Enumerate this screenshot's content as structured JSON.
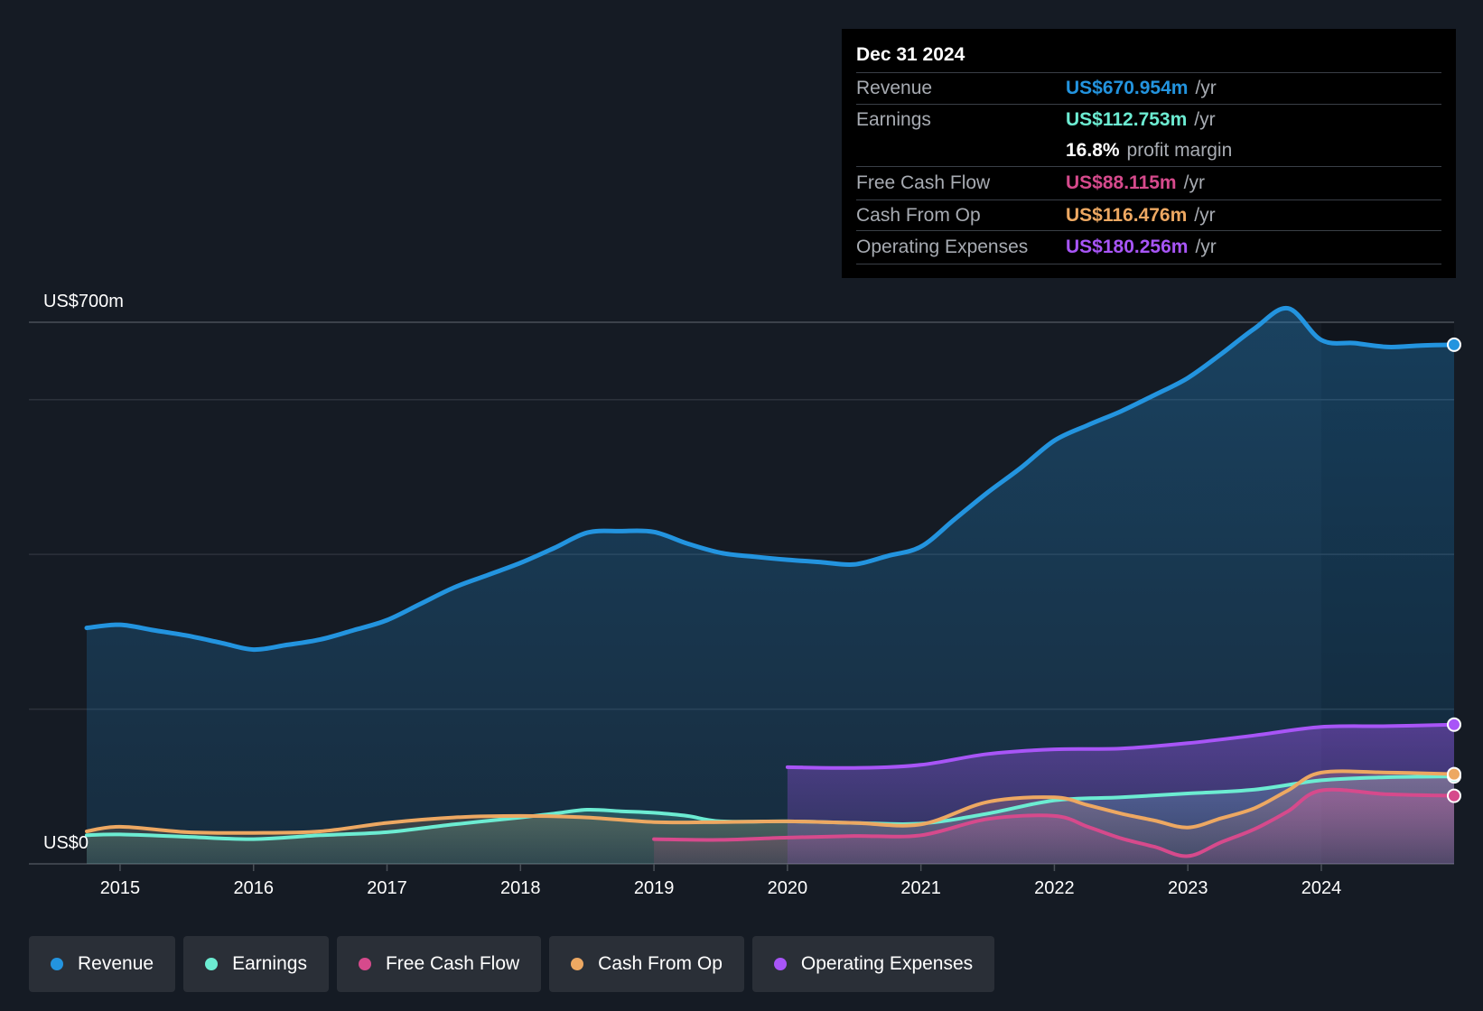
{
  "chart_data": {
    "type": "area",
    "y_axis": {
      "top_label": "US$700m",
      "bottom_label": "US$0",
      "ylim": [
        0,
        700
      ]
    },
    "x_ticks": [
      "2015",
      "2016",
      "2017",
      "2018",
      "2019",
      "2020",
      "2021",
      "2022",
      "2023",
      "2024"
    ],
    "xlim": [
      2014.7,
      2025.0
    ],
    "highlight_from": 2024.0,
    "series": [
      {
        "name": "Revenue",
        "color": "#2394df",
        "points": [
          [
            2014.75,
            305
          ],
          [
            2015.0,
            309
          ],
          [
            2015.25,
            302
          ],
          [
            2015.5,
            295
          ],
          [
            2015.75,
            286
          ],
          [
            2016.0,
            277
          ],
          [
            2016.25,
            283
          ],
          [
            2016.5,
            290
          ],
          [
            2016.75,
            302
          ],
          [
            2017.0,
            315
          ],
          [
            2017.25,
            336
          ],
          [
            2017.5,
            357
          ],
          [
            2017.75,
            373
          ],
          [
            2018.0,
            389
          ],
          [
            2018.25,
            408
          ],
          [
            2018.5,
            428
          ],
          [
            2018.75,
            430
          ],
          [
            2019.0,
            429
          ],
          [
            2019.25,
            414
          ],
          [
            2019.5,
            402
          ],
          [
            2019.75,
            397
          ],
          [
            2020.0,
            393
          ],
          [
            2020.25,
            390
          ],
          [
            2020.5,
            387
          ],
          [
            2020.75,
            398
          ],
          [
            2021.0,
            410
          ],
          [
            2021.25,
            445
          ],
          [
            2021.5,
            480
          ],
          [
            2021.75,
            512
          ],
          [
            2022.0,
            547
          ],
          [
            2022.25,
            567
          ],
          [
            2022.5,
            585
          ],
          [
            2022.75,
            606
          ],
          [
            2023.0,
            628
          ],
          [
            2023.25,
            659
          ],
          [
            2023.5,
            692
          ],
          [
            2023.75,
            718
          ],
          [
            2024.0,
            677
          ],
          [
            2024.25,
            673
          ],
          [
            2024.5,
            668
          ],
          [
            2024.75,
            670
          ],
          [
            2025.0,
            671
          ]
        ]
      },
      {
        "name": "Earnings",
        "color": "#6cecd2",
        "points": [
          [
            2014.75,
            37
          ],
          [
            2015.0,
            38
          ],
          [
            2015.5,
            35
          ],
          [
            2016.0,
            32
          ],
          [
            2016.5,
            37
          ],
          [
            2017.0,
            41
          ],
          [
            2017.5,
            51
          ],
          [
            2018.0,
            60
          ],
          [
            2018.25,
            65
          ],
          [
            2018.5,
            70
          ],
          [
            2018.75,
            68
          ],
          [
            2019.0,
            66
          ],
          [
            2019.25,
            62
          ],
          [
            2019.5,
            55
          ],
          [
            2020.0,
            55
          ],
          [
            2020.5,
            53
          ],
          [
            2021.0,
            52
          ],
          [
            2021.5,
            65
          ],
          [
            2022.0,
            82
          ],
          [
            2022.5,
            86
          ],
          [
            2023.0,
            91
          ],
          [
            2023.5,
            96
          ],
          [
            2024.0,
            108
          ],
          [
            2024.5,
            112
          ],
          [
            2025.0,
            113
          ]
        ]
      },
      {
        "name": "Free Cash Flow",
        "color": "#d64a8c",
        "points": [
          [
            2019.0,
            32
          ],
          [
            2019.5,
            31
          ],
          [
            2020.0,
            34
          ],
          [
            2020.5,
            36
          ],
          [
            2021.0,
            37
          ],
          [
            2021.5,
            58
          ],
          [
            2022.0,
            62
          ],
          [
            2022.25,
            48
          ],
          [
            2022.5,
            33
          ],
          [
            2022.75,
            22
          ],
          [
            2023.0,
            10
          ],
          [
            2023.25,
            28
          ],
          [
            2023.5,
            45
          ],
          [
            2023.75,
            68
          ],
          [
            2024.0,
            95
          ],
          [
            2024.5,
            90
          ],
          [
            2025.0,
            88
          ]
        ]
      },
      {
        "name": "Cash From Op",
        "color": "#eda862",
        "points": [
          [
            2014.75,
            42
          ],
          [
            2015.0,
            48
          ],
          [
            2015.5,
            41
          ],
          [
            2016.0,
            40
          ],
          [
            2016.5,
            42
          ],
          [
            2017.0,
            53
          ],
          [
            2017.5,
            60
          ],
          [
            2018.0,
            62
          ],
          [
            2018.5,
            60
          ],
          [
            2019.0,
            54
          ],
          [
            2019.5,
            54
          ],
          [
            2020.0,
            55
          ],
          [
            2020.5,
            53
          ],
          [
            2021.0,
            51
          ],
          [
            2021.5,
            80
          ],
          [
            2022.0,
            86
          ],
          [
            2022.25,
            76
          ],
          [
            2022.5,
            65
          ],
          [
            2022.75,
            56
          ],
          [
            2023.0,
            47
          ],
          [
            2023.25,
            59
          ],
          [
            2023.5,
            72
          ],
          [
            2023.75,
            95
          ],
          [
            2024.0,
            118
          ],
          [
            2024.5,
            118
          ],
          [
            2025.0,
            116
          ]
        ]
      },
      {
        "name": "Operating Expenses",
        "color": "#a855f7",
        "points": [
          [
            2020.0,
            125
          ],
          [
            2020.5,
            124
          ],
          [
            2021.0,
            128
          ],
          [
            2021.5,
            142
          ],
          [
            2022.0,
            148
          ],
          [
            2022.5,
            149
          ],
          [
            2023.0,
            156
          ],
          [
            2023.5,
            166
          ],
          [
            2024.0,
            177
          ],
          [
            2024.5,
            178
          ],
          [
            2025.0,
            180
          ]
        ]
      }
    ]
  },
  "tooltip": {
    "date": "Dec 31 2024",
    "rows": [
      {
        "name": "Revenue",
        "value": "US$670.954m",
        "unit": "/yr",
        "color": "#2394df"
      },
      {
        "name": "Earnings",
        "value": "US$112.753m",
        "unit": "/yr",
        "color": "#6cecd2"
      },
      {
        "name": "",
        "value": "16.8%",
        "unit": "profit margin",
        "color": "#ffffff"
      },
      {
        "name": "Free Cash Flow",
        "value": "US$88.115m",
        "unit": "/yr",
        "color": "#d64a8c"
      },
      {
        "name": "Cash From Op",
        "value": "US$116.476m",
        "unit": "/yr",
        "color": "#eda862"
      },
      {
        "name": "Operating Expenses",
        "value": "US$180.256m",
        "unit": "/yr",
        "color": "#a855f7"
      }
    ]
  },
  "legend": [
    {
      "label": "Revenue",
      "color": "#2394df"
    },
    {
      "label": "Earnings",
      "color": "#6cecd2"
    },
    {
      "label": "Free Cash Flow",
      "color": "#d64a8c"
    },
    {
      "label": "Cash From Op",
      "color": "#eda862"
    },
    {
      "label": "Operating Expenses",
      "color": "#a855f7"
    }
  ]
}
